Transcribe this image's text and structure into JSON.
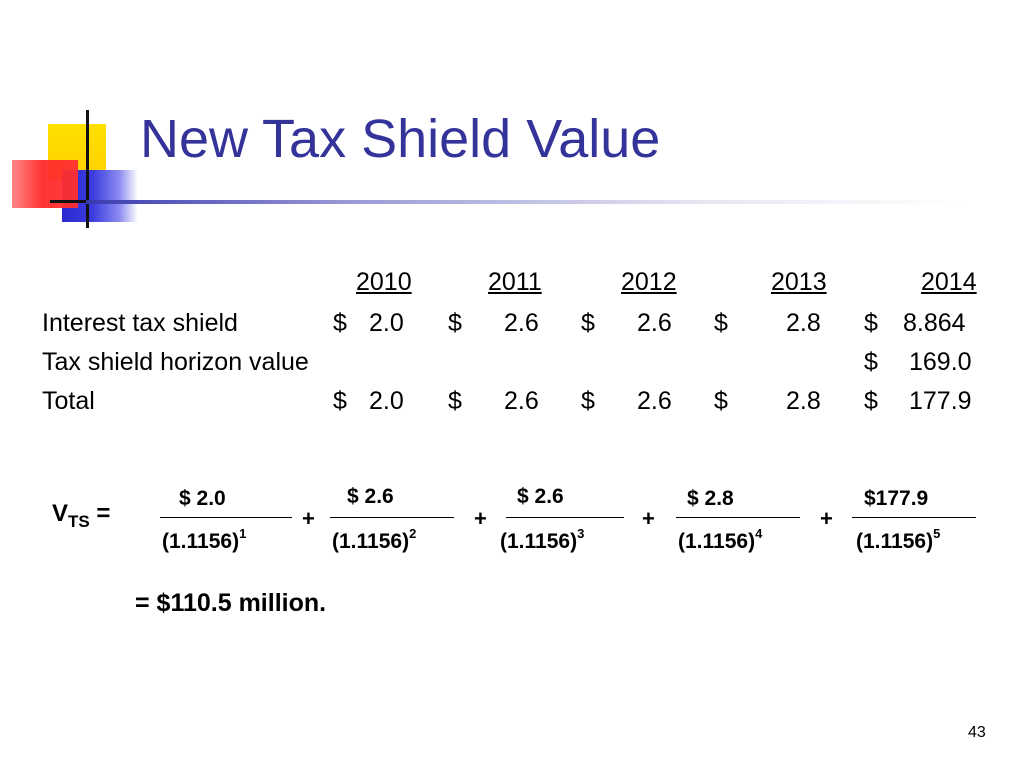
{
  "slide": {
    "title": "New Tax Shield Value",
    "page_number": "43"
  },
  "table": {
    "years": [
      "2010",
      "2011",
      "2012",
      "2013",
      "2014"
    ],
    "rows": [
      {
        "label": "Interest tax shield",
        "cells": [
          {
            "currency": "$",
            "value": "2.0"
          },
          {
            "currency": "$",
            "value": "2.6"
          },
          {
            "currency": "$",
            "value": "2.6"
          },
          {
            "currency": "$",
            "value": "2.8"
          },
          {
            "currency": "$",
            "value": "8.864"
          }
        ]
      },
      {
        "label": "Tax shield horizon value",
        "cells": [
          null,
          null,
          null,
          null,
          {
            "currency": "$",
            "value": "169.0"
          }
        ]
      },
      {
        "label": "Total",
        "cells": [
          {
            "currency": "$",
            "value": "2.0"
          },
          {
            "currency": "$",
            "value": "2.6"
          },
          {
            "currency": "$",
            "value": "2.6"
          },
          {
            "currency": "$",
            "value": "2.8"
          },
          {
            "currency": "$",
            "value": "177.9"
          }
        ]
      }
    ]
  },
  "formula": {
    "lhs_main": "V",
    "lhs_sub": "TS",
    "equals": "=",
    "plus": "+",
    "terms": [
      {
        "numerator": "$  2.0",
        "denominator": "(1.1156)",
        "exponent": "1"
      },
      {
        "numerator": "$  2.6",
        "denominator": "(1.1156)",
        "exponent": "2"
      },
      {
        "numerator": "$  2.6",
        "denominator": "(1.1156)",
        "exponent": "3"
      },
      {
        "numerator": "$  2.8",
        "denominator": "(1.1156)",
        "exponent": "4"
      },
      {
        "numerator": "$177.9",
        "denominator": "(1.1156)",
        "exponent": "5"
      }
    ],
    "result": "= $110.5 million."
  },
  "colors": {
    "title": "#33339a",
    "logo_yellow": "#ffd700",
    "logo_red": "#ff3030",
    "logo_blue": "#3333cc"
  }
}
